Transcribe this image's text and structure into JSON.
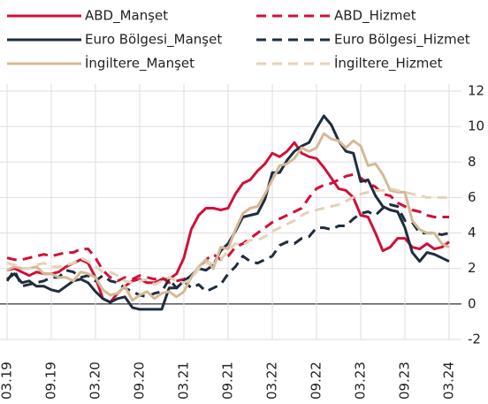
{
  "chart_data": {
    "type": "line",
    "categories": [
      "03.19",
      null,
      null,
      null,
      null,
      null,
      "09.19",
      null,
      null,
      null,
      null,
      null,
      "03.20",
      null,
      null,
      null,
      null,
      null,
      "09.20",
      null,
      null,
      null,
      null,
      null,
      "03.21",
      null,
      null,
      null,
      null,
      null,
      "09.21",
      null,
      null,
      null,
      null,
      null,
      "03.22",
      null,
      null,
      null,
      null,
      null,
      "09.22",
      null,
      null,
      null,
      null,
      null,
      "03.23",
      null,
      null,
      null,
      null,
      null,
      "09.23",
      null,
      null,
      null,
      null,
      null,
      "03.24"
    ],
    "ylim": [
      -2,
      12
    ],
    "yticks": [
      -2,
      0,
      2,
      4,
      6,
      8,
      10,
      12
    ],
    "grid": true,
    "series": [
      {
        "name": "ABD_Manşet",
        "color": "#d0103a",
        "style": "solid",
        "values": [
          1.9,
          2.0,
          1.8,
          1.6,
          1.8,
          1.7,
          1.7,
          1.8,
          2.1,
          2.3,
          2.5,
          2.3,
          1.5,
          0.3,
          0.1,
          0.6,
          1.0,
          1.3,
          1.4,
          1.2,
          1.2,
          1.4,
          1.4,
          1.7,
          2.6,
          4.2,
          5.0,
          5.4,
          5.4,
          5.3,
          5.4,
          6.2,
          6.8,
          7.0,
          7.5,
          7.9,
          8.5,
          8.3,
          8.6,
          9.1,
          8.5,
          8.3,
          8.2,
          7.7,
          7.1,
          6.5,
          6.4,
          6.0,
          5.0,
          4.9,
          4.0,
          3.0,
          3.2,
          3.7,
          3.7,
          3.2,
          3.1,
          3.4,
          3.1,
          3.2,
          3.5
        ]
      },
      {
        "name": "ABD_Hizmet",
        "color": "#d0103a",
        "style": "dashed",
        "values": [
          2.6,
          2.5,
          2.5,
          2.6,
          2.7,
          2.8,
          2.7,
          2.8,
          2.9,
          2.9,
          3.1,
          3.1,
          2.6,
          1.9,
          1.5,
          1.3,
          1.5,
          1.4,
          1.6,
          1.5,
          1.4,
          1.5,
          1.2,
          1.3,
          1.4,
          1.6,
          2.0,
          2.5,
          2.8,
          2.5,
          2.7,
          3.2,
          3.4,
          3.7,
          4.0,
          4.3,
          4.6,
          4.8,
          5.0,
          5.2,
          5.4,
          6.0,
          6.5,
          6.7,
          6.8,
          7.0,
          7.2,
          7.3,
          7.1,
          6.8,
          6.6,
          6.2,
          6.1,
          5.7,
          5.5,
          5.3,
          5.2,
          5.0,
          4.9,
          4.9,
          4.9
        ]
      },
      {
        "name": "Euro Bölgesi_Manşet",
        "color": "#1f2d3d",
        "style": "solid",
        "values": [
          1.4,
          1.7,
          1.2,
          1.3,
          1.0,
          1.0,
          0.8,
          0.7,
          1.0,
          1.3,
          1.4,
          1.2,
          0.7,
          0.3,
          0.1,
          0.3,
          0.4,
          -0.2,
          -0.3,
          -0.3,
          -0.3,
          -0.3,
          0.9,
          0.9,
          1.3,
          1.6,
          2.0,
          1.9,
          2.2,
          3.0,
          3.4,
          4.1,
          4.9,
          5.0,
          5.1,
          5.9,
          7.4,
          7.4,
          8.1,
          8.6,
          8.9,
          9.1,
          9.9,
          10.6,
          10.1,
          9.2,
          8.6,
          8.5,
          6.9,
          7.0,
          6.1,
          5.5,
          5.3,
          5.2,
          4.3,
          2.9,
          2.4,
          2.9,
          2.8,
          2.6,
          2.4
        ]
      },
      {
        "name": "Euro Bölgesi_Hizmet",
        "color": "#1f2d3d",
        "style": "dashed",
        "values": [
          1.3,
          1.9,
          1.0,
          1.1,
          1.2,
          1.3,
          1.5,
          1.5,
          1.9,
          1.8,
          1.5,
          1.6,
          1.3,
          1.6,
          1.3,
          1.2,
          0.9,
          0.7,
          0.5,
          0.4,
          0.6,
          0.7,
          1.4,
          0.9,
          1.3,
          0.9,
          1.1,
          0.7,
          0.9,
          1.1,
          1.7,
          2.1,
          2.7,
          2.4,
          2.3,
          2.5,
          2.7,
          3.3,
          3.5,
          3.4,
          3.7,
          3.8,
          4.3,
          4.3,
          4.2,
          4.4,
          4.4,
          4.8,
          5.1,
          5.2,
          5.0,
          5.4,
          5.6,
          5.5,
          4.7,
          4.6,
          4.0,
          4.0,
          4.0,
          3.9,
          4.0
        ]
      },
      {
        "name": "İngiltere_Manşet",
        "color": "#d4b996",
        "style": "solid",
        "values": [
          1.9,
          2.1,
          2.0,
          2.0,
          2.1,
          1.7,
          1.7,
          1.5,
          1.5,
          1.3,
          1.8,
          1.7,
          1.5,
          0.8,
          0.5,
          0.6,
          1.0,
          0.2,
          0.5,
          0.7,
          0.3,
          0.6,
          0.7,
          0.4,
          0.7,
          1.5,
          2.1,
          2.5,
          2.0,
          3.2,
          3.1,
          4.2,
          5.1,
          5.4,
          5.5,
          6.2,
          7.0,
          7.8,
          7.9,
          8.2,
          8.8,
          8.6,
          8.8,
          9.6,
          9.3,
          9.2,
          8.8,
          9.2,
          8.9,
          7.8,
          7.9,
          7.3,
          6.4,
          6.3,
          6.3,
          4.7,
          4.2,
          4.0,
          4.0,
          3.4,
          3.2
        ]
      },
      {
        "name": "İngiltere_Hizmet",
        "color": "#e3d2b8",
        "style": "dashed",
        "values": [
          2.3,
          2.2,
          2.0,
          2.0,
          2.2,
          2.3,
          2.1,
          2.1,
          2.2,
          2.3,
          2.6,
          2.4,
          2.1,
          1.8,
          1.8,
          1.6,
          1.3,
          1.2,
          1.3,
          1.4,
          1.1,
          1.3,
          1.5,
          1.3,
          1.2,
          1.4,
          2.0,
          2.3,
          2.3,
          2.5,
          3.0,
          3.4,
          3.3,
          3.6,
          3.6,
          3.8,
          4.1,
          4.3,
          4.5,
          4.7,
          5.0,
          5.2,
          5.3,
          5.4,
          5.5,
          5.6,
          5.8,
          6.0,
          6.2,
          6.3,
          6.4,
          6.4,
          6.5,
          6.4,
          6.3,
          6.2,
          6.1,
          6.0,
          6.0,
          6.0,
          6.0
        ]
      }
    ]
  }
}
